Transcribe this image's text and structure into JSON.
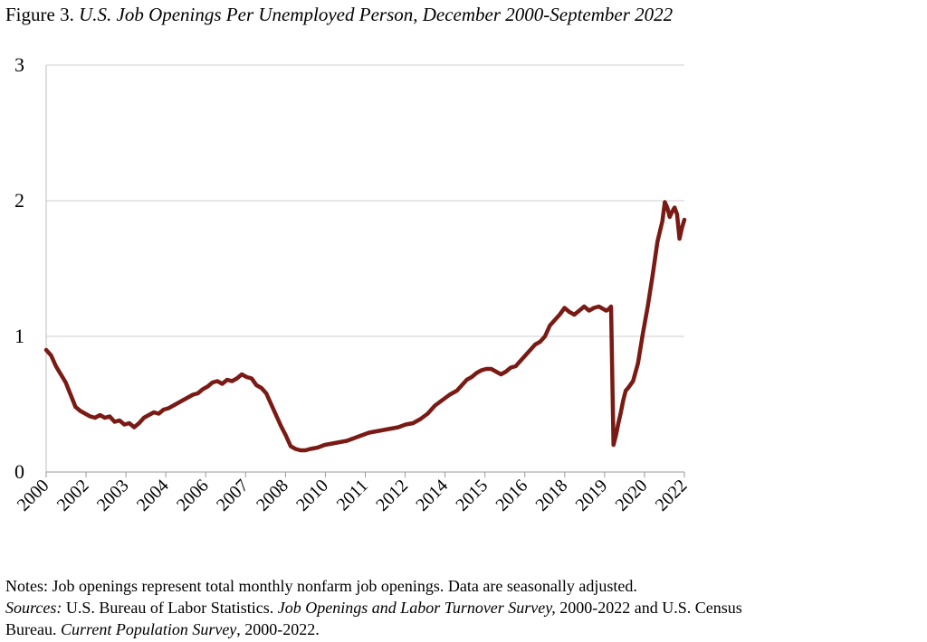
{
  "title": {
    "figure_label": "Figure 3.",
    "text": "U.S. Job Openings Per Unemployed Person, December 2000-September 2022"
  },
  "chart_data": {
    "type": "line",
    "title": "U.S. Job Openings Per Unemployed Person, December 2000-September 2022",
    "xlabel": "",
    "ylabel": "",
    "ylim": [
      0,
      3
    ],
    "yticks": [
      "0",
      "1",
      "2",
      "3"
    ],
    "xtick_labels": [
      "2000",
      "2002",
      "2003",
      "2004",
      "2006",
      "2007",
      "2008",
      "2010",
      "2011",
      "2012",
      "2014",
      "2015",
      "2016",
      "2018",
      "2019",
      "2020",
      "2022"
    ],
    "grid": "horizontal",
    "line_color": "#7a1a14",
    "x_start": "2000-12",
    "x_end": "2022-09",
    "series": [
      {
        "name": "",
        "x": [
          "2000-12",
          "2001-02",
          "2001-04",
          "2001-06",
          "2001-08",
          "2001-10",
          "2001-12",
          "2002-02",
          "2002-04",
          "2002-06",
          "2002-08",
          "2002-10",
          "2002-12",
          "2003-02",
          "2003-04",
          "2003-06",
          "2003-08",
          "2003-10",
          "2003-12",
          "2004-02",
          "2004-04",
          "2004-06",
          "2004-08",
          "2004-10",
          "2004-12",
          "2005-02",
          "2005-04",
          "2005-06",
          "2005-08",
          "2005-10",
          "2005-12",
          "2006-02",
          "2006-04",
          "2006-06",
          "2006-08",
          "2006-10",
          "2006-12",
          "2007-02",
          "2007-04",
          "2007-06",
          "2007-08",
          "2007-10",
          "2007-12",
          "2008-02",
          "2008-04",
          "2008-06",
          "2008-08",
          "2008-10",
          "2008-12",
          "2009-02",
          "2009-04",
          "2009-06",
          "2009-08",
          "2009-10",
          "2009-12",
          "2010-03",
          "2010-06",
          "2010-09",
          "2010-12",
          "2011-03",
          "2011-06",
          "2011-09",
          "2011-12",
          "2012-03",
          "2012-06",
          "2012-09",
          "2012-12",
          "2013-03",
          "2013-06",
          "2013-09",
          "2013-12",
          "2014-03",
          "2014-06",
          "2014-09",
          "2014-12",
          "2015-02",
          "2015-04",
          "2015-06",
          "2015-08",
          "2015-10",
          "2015-12",
          "2016-02",
          "2016-04",
          "2016-06",
          "2016-08",
          "2016-10",
          "2016-12",
          "2017-02",
          "2017-04",
          "2017-06",
          "2017-08",
          "2017-10",
          "2017-12",
          "2018-02",
          "2018-04",
          "2018-06",
          "2018-08",
          "2018-10",
          "2018-12",
          "2019-02",
          "2019-04",
          "2019-06",
          "2019-08",
          "2019-10",
          "2019-12",
          "2020-01",
          "2020-02",
          "2020-03",
          "2020-04",
          "2020-05",
          "2020-06",
          "2020-07",
          "2020-08",
          "2020-09",
          "2020-10",
          "2020-12",
          "2021-02",
          "2021-04",
          "2021-06",
          "2021-08",
          "2021-10",
          "2021-12",
          "2022-01",
          "2022-02",
          "2022-03",
          "2022-04",
          "2022-05",
          "2022-06",
          "2022-07",
          "2022-08",
          "2022-09"
        ],
        "y": [
          0.9,
          0.86,
          0.78,
          0.72,
          0.66,
          0.57,
          0.48,
          0.45,
          0.43,
          0.41,
          0.4,
          0.42,
          0.4,
          0.41,
          0.37,
          0.38,
          0.35,
          0.36,
          0.33,
          0.36,
          0.4,
          0.42,
          0.44,
          0.43,
          0.46,
          0.47,
          0.49,
          0.51,
          0.53,
          0.55,
          0.57,
          0.58,
          0.61,
          0.63,
          0.66,
          0.67,
          0.65,
          0.68,
          0.67,
          0.69,
          0.72,
          0.7,
          0.69,
          0.64,
          0.62,
          0.58,
          0.5,
          0.42,
          0.34,
          0.27,
          0.19,
          0.17,
          0.16,
          0.16,
          0.17,
          0.18,
          0.2,
          0.21,
          0.22,
          0.23,
          0.25,
          0.27,
          0.29,
          0.3,
          0.31,
          0.32,
          0.33,
          0.35,
          0.36,
          0.39,
          0.43,
          0.49,
          0.53,
          0.57,
          0.6,
          0.64,
          0.68,
          0.7,
          0.73,
          0.75,
          0.76,
          0.76,
          0.74,
          0.72,
          0.74,
          0.77,
          0.78,
          0.82,
          0.86,
          0.9,
          0.94,
          0.96,
          1.0,
          1.08,
          1.12,
          1.16,
          1.21,
          1.18,
          1.16,
          1.19,
          1.22,
          1.19,
          1.21,
          1.22,
          1.2,
          1.19,
          1.2,
          1.22,
          0.2,
          0.27,
          0.36,
          0.44,
          0.53,
          0.6,
          0.62,
          0.67,
          0.8,
          1.02,
          1.22,
          1.45,
          1.7,
          1.85,
          1.99,
          1.95,
          1.88,
          1.92,
          1.95,
          1.9,
          1.72,
          1.8,
          1.86
        ]
      }
    ]
  },
  "notes": {
    "line1": "Notes: Job openings represent total monthly nonfarm job openings.  Data are seasonally adjusted.",
    "sources_label": "Sources:",
    "sources_text1": " U.S. Bureau of Labor Statistics. ",
    "sources_italic1": "Job Openings and Labor Turnover Survey,",
    "sources_text2": " 2000-2022 and U.S. Census",
    "line3_text1": "Bureau. ",
    "line3_italic": "Current Population Survey",
    "line3_text2": ", 2000-2022."
  }
}
